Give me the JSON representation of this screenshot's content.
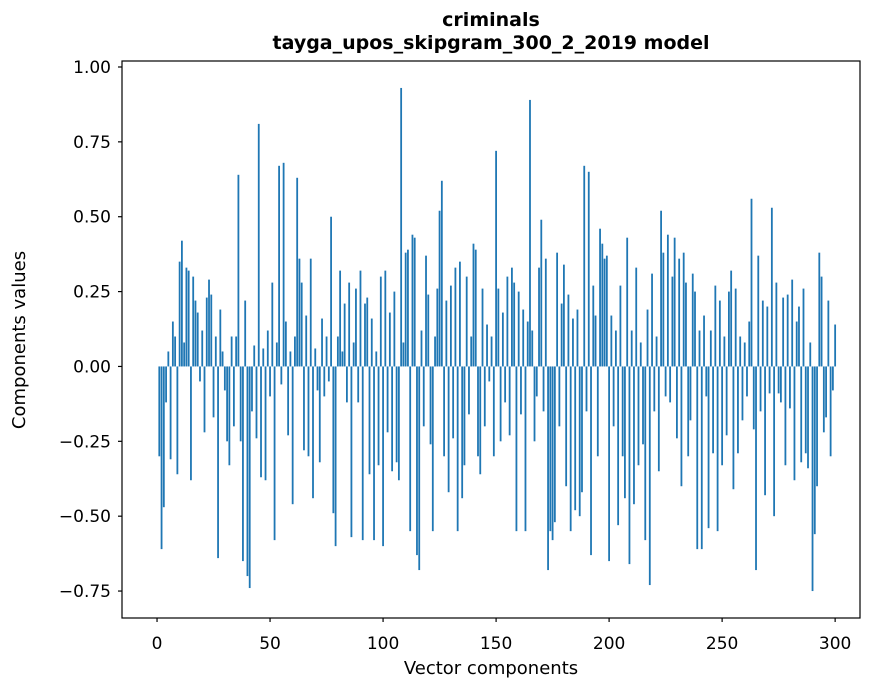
{
  "figure": {
    "title_line1": "criminals",
    "title_line2": "tayga_upos_skipgram_300_2_2019 model"
  },
  "chart_data": {
    "type": "bar",
    "title": "criminals\ntayga_upos_skipgram_300_2_2019 model",
    "xlabel": "Vector components",
    "ylabel": "Components values",
    "bar_color": "#1f77b4",
    "grid": false,
    "legend": null,
    "x_start": 1,
    "xlim": [
      -15.5,
      311
    ],
    "ylim": [
      -0.84,
      1.02
    ],
    "xticks": [
      0,
      50,
      100,
      150,
      200,
      250,
      300
    ],
    "xtick_labels": [
      "0",
      "50",
      "100",
      "150",
      "200",
      "250",
      "300"
    ],
    "yticks": [
      1.0,
      0.75,
      0.5,
      0.25,
      0.0,
      -0.25,
      -0.5,
      -0.75
    ],
    "ytick_labels": [
      "1.00",
      "0.75",
      "0.50",
      "0.25",
      "0.00",
      "−0.25",
      "−0.50",
      "−0.75"
    ],
    "values": [
      -0.3,
      -0.61,
      -0.47,
      -0.12,
      0.05,
      -0.31,
      0.15,
      0.1,
      -0.36,
      0.35,
      0.42,
      0.08,
      0.33,
      0.32,
      -0.38,
      0.3,
      0.22,
      0.18,
      -0.05,
      0.12,
      -0.22,
      0.23,
      0.29,
      0.24,
      -0.17,
      0.1,
      -0.64,
      0.19,
      0.05,
      -0.08,
      -0.25,
      -0.33,
      0.1,
      -0.2,
      0.1,
      0.64,
      -0.25,
      -0.65,
      0.22,
      -0.7,
      -0.74,
      -0.15,
      0.07,
      -0.24,
      0.81,
      -0.37,
      0.06,
      -0.38,
      0.12,
      -0.1,
      0.28,
      -0.58,
      0.08,
      0.67,
      -0.06,
      0.68,
      0.15,
      -0.23,
      0.05,
      -0.46,
      0.1,
      0.63,
      0.36,
      0.28,
      -0.28,
      0.17,
      -0.3,
      0.36,
      -0.44,
      0.06,
      -0.08,
      -0.32,
      0.16,
      -0.1,
      0.1,
      -0.05,
      0.5,
      -0.49,
      -0.6,
      0.1,
      0.32,
      0.05,
      0.21,
      -0.12,
      0.28,
      -0.57,
      0.08,
      0.26,
      -0.12,
      0.32,
      -0.58,
      0.21,
      0.23,
      -0.36,
      0.16,
      -0.58,
      0.05,
      -0.33,
      0.3,
      -0.6,
      0.32,
      -0.22,
      0.18,
      -0.35,
      0.25,
      -0.32,
      -0.38,
      0.93,
      0.08,
      0.38,
      0.39,
      -0.55,
      0.44,
      0.43,
      -0.63,
      -0.68,
      0.12,
      -0.2,
      0.37,
      0.24,
      -0.26,
      -0.55,
      0.1,
      0.26,
      0.52,
      0.62,
      -0.3,
      0.22,
      -0.42,
      0.27,
      -0.24,
      0.33,
      -0.55,
      0.35,
      -0.44,
      -0.33,
      0.3,
      -0.16,
      0.1,
      0.41,
      0.39,
      -0.3,
      -0.36,
      0.26,
      -0.2,
      0.14,
      -0.05,
      0.1,
      -0.3,
      0.72,
      0.26,
      -0.25,
      0.18,
      -0.12,
      0.3,
      -0.23,
      0.33,
      0.28,
      -0.55,
      0.25,
      -0.16,
      0.19,
      -0.55,
      0.15,
      0.89,
      0.12,
      -0.25,
      -0.1,
      0.33,
      0.49,
      -0.15,
      0.36,
      -0.68,
      -0.55,
      -0.58,
      -0.52,
      0.38,
      -0.2,
      0.21,
      0.34,
      -0.4,
      0.24,
      -0.55,
      0.16,
      -0.48,
      0.19,
      -0.5,
      -0.42,
      0.67,
      -0.15,
      0.65,
      -0.63,
      0.27,
      0.17,
      -0.3,
      0.46,
      0.41,
      0.36,
      0.37,
      -0.65,
      0.17,
      -0.2,
      0.12,
      -0.53,
      0.27,
      -0.3,
      -0.44,
      0.43,
      -0.66,
      0.12,
      -0.46,
      0.33,
      -0.33,
      0.08,
      -0.26,
      -0.58,
      0.19,
      -0.73,
      0.31,
      -0.15,
      0.1,
      -0.35,
      0.52,
      0.38,
      -0.1,
      0.44,
      -0.12,
      0.3,
      0.43,
      -0.24,
      0.36,
      -0.4,
      0.38,
      0.28,
      -0.3,
      -0.18,
      0.31,
      0.25,
      -0.61,
      0.12,
      -0.61,
      0.17,
      -0.1,
      -0.54,
      0.12,
      -0.29,
      0.27,
      -0.55,
      0.22,
      -0.33,
      0.1,
      -0.23,
      0.25,
      0.32,
      -0.41,
      0.26,
      -0.29,
      0.1,
      -0.18,
      0.08,
      -0.1,
      0.15,
      0.56,
      -0.21,
      -0.68,
      0.37,
      -0.15,
      0.22,
      -0.43,
      0.2,
      -0.09,
      0.53,
      -0.5,
      0.28,
      -0.09,
      -0.12,
      0.23,
      -0.33,
      0.24,
      -0.14,
      0.29,
      -0.38,
      0.15,
      0.2,
      -0.32,
      0.26,
      -0.29,
      -0.34,
      0.08,
      -0.75,
      -0.56,
      -0.4,
      0.38,
      0.3,
      -0.22,
      -0.17,
      0.22,
      -0.3,
      -0.08,
      0.14
    ]
  }
}
